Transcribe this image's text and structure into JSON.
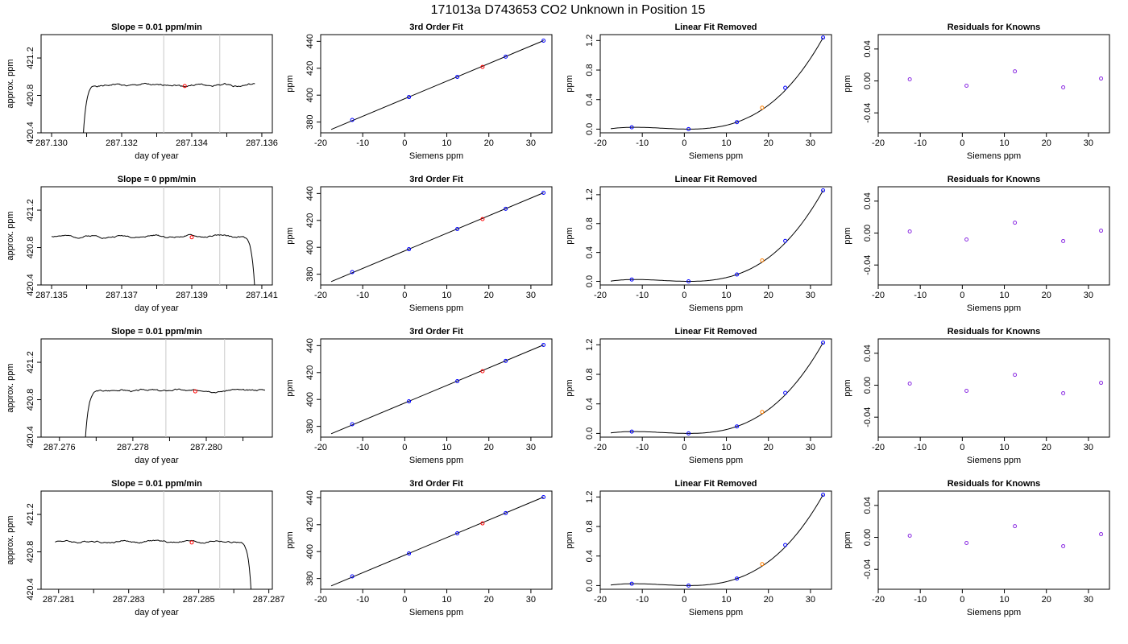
{
  "figure": {
    "title": "171013a      D743653    CO2 Unknown in Position  15"
  },
  "colors": {
    "line": "#000000",
    "vline": "#c8c8c8",
    "unknown_point": "#ff0000",
    "standard_point": "#0000ff",
    "unknown_point_removed": "#ff8000",
    "residual_point": "#8a2be2"
  },
  "chart_data": [
    {
      "type": "line",
      "row": 1,
      "col": 1,
      "title": "Slope =  0.01  ppm/min",
      "xlabel": "day of year",
      "ylabel": "approx. ppm",
      "xlim": [
        287.1297,
        287.1363
      ],
      "ylim": [
        420.4,
        421.45
      ],
      "xticks": [
        287.13,
        287.131,
        287.132,
        287.133,
        287.134,
        287.135,
        287.136
      ],
      "xtick_labels": [
        "287.130",
        "",
        "287.132",
        "",
        "287.134",
        "",
        "287.136"
      ],
      "yticks": [
        420.4,
        420.8,
        421.2
      ],
      "ytick_labels": [
        "420.4",
        "420.8",
        "421.2"
      ],
      "vlines": [
        287.1332,
        287.1348
      ],
      "trace": {
        "x0": 287.1309,
        "x1": 287.1358,
        "ramp": "start",
        "start_value": 420.35,
        "level": 420.91,
        "seed": 1
      },
      "unknown_point": {
        "x": 287.1338,
        "y": 420.9
      }
    },
    {
      "type": "line",
      "row": 1,
      "col": 2,
      "title": "3rd Order Fit",
      "xlabel": "Siemens ppm",
      "ylabel": "ppm",
      "xlim": [
        -20,
        35
      ],
      "ylim": [
        372,
        445
      ],
      "xticks": [
        -20,
        -10,
        0,
        10,
        20,
        30
      ],
      "yticks": [
        380,
        400,
        420,
        440
      ],
      "fit_line": {
        "x": [
          -17.5,
          33
        ],
        "y": [
          374.5,
          440.5
        ]
      },
      "standards": {
        "x": [
          -12.5,
          1,
          12.5,
          24,
          33
        ],
        "y": [
          381.6,
          398.6,
          413.6,
          428.6,
          440.5
        ]
      },
      "unknown": {
        "x": 18.5,
        "y": 421.0
      }
    },
    {
      "type": "line",
      "row": 1,
      "col": 3,
      "title": "Linear Fit Removed",
      "xlabel": "Siemens ppm",
      "ylabel": "ppm",
      "xlim": [
        -20,
        35
      ],
      "ylim": [
        -0.05,
        1.28
      ],
      "xticks": [
        -20,
        -10,
        0,
        10,
        20,
        30
      ],
      "yticks": [
        0,
        0.4,
        0.8,
        1.2
      ],
      "ytick_labels": [
        "0.0",
        "0.4",
        "0.8",
        "1.2"
      ],
      "curve_x": [
        -17.5,
        33
      ],
      "standards": {
        "x": [
          -12.5,
          1,
          12.5,
          24,
          33
        ],
        "y": [
          0.025,
          0,
          0.095,
          0.56,
          1.24
        ]
      },
      "unknown": {
        "x": 18.5,
        "y": 0.29
      }
    },
    {
      "type": "scatter",
      "row": 1,
      "col": 4,
      "title": "Residuals for Knowns",
      "xlabel": "Siemens ppm",
      "ylabel": "ppm",
      "xlim": [
        -20,
        35
      ],
      "ylim": [
        -0.065,
        0.058
      ],
      "xticks": [
        -20,
        -10,
        0,
        10,
        20,
        30
      ],
      "yticks": [
        -0.04,
        0,
        0.04
      ],
      "ytick_labels": [
        "-0.04",
        "0.00",
        "0.04"
      ],
      "points": {
        "x": [
          -12.5,
          1,
          12.5,
          24,
          33
        ],
        "y": [
          0.002,
          -0.006,
          0.012,
          -0.008,
          0.003
        ]
      }
    },
    {
      "type": "line",
      "row": 2,
      "col": 1,
      "title": "Slope =  0  ppm/min",
      "xlabel": "day of year",
      "ylabel": "approx. ppm",
      "xlim": [
        287.1347,
        287.1413
      ],
      "ylim": [
        420.4,
        421.45
      ],
      "xticks": [
        287.135,
        287.136,
        287.137,
        287.138,
        287.139,
        287.14,
        287.141
      ],
      "xtick_labels": [
        "287.135",
        "",
        "287.137",
        "",
        "287.139",
        "",
        "287.141"
      ],
      "yticks": [
        420.4,
        420.8,
        421.2
      ],
      "ytick_labels": [
        "420.4",
        "420.8",
        "421.2"
      ],
      "vlines": [
        287.1382,
        287.1398
      ],
      "trace": {
        "x0": 287.135,
        "x1": 287.1408,
        "ramp": "end",
        "start_value": 420.35,
        "level": 420.92,
        "seed": 2
      },
      "unknown_point": {
        "x": 287.139,
        "y": 420.91
      }
    },
    {
      "type": "line",
      "row": 2,
      "col": 2,
      "title": "3rd Order Fit",
      "xlabel": "Siemens ppm",
      "ylabel": "ppm",
      "xlim": [
        -20,
        35
      ],
      "ylim": [
        372,
        445
      ],
      "xticks": [
        -20,
        -10,
        0,
        10,
        20,
        30
      ],
      "yticks": [
        380,
        400,
        420,
        440
      ],
      "fit_line": {
        "x": [
          -17.5,
          33
        ],
        "y": [
          374.5,
          440.5
        ]
      },
      "standards": {
        "x": [
          -12.5,
          1,
          12.5,
          24,
          33
        ],
        "y": [
          381.6,
          398.6,
          413.6,
          428.6,
          440.5
        ]
      },
      "unknown": {
        "x": 18.5,
        "y": 421.0
      }
    },
    {
      "type": "line",
      "row": 2,
      "col": 3,
      "title": "Linear Fit Removed",
      "xlabel": "Siemens ppm",
      "ylabel": "ppm",
      "xlim": [
        -20,
        35
      ],
      "ylim": [
        -0.05,
        1.31
      ],
      "xticks": [
        -20,
        -10,
        0,
        10,
        20,
        30
      ],
      "yticks": [
        0,
        0.4,
        0.8,
        1.2
      ],
      "ytick_labels": [
        "0.0",
        "0.4",
        "0.8",
        "1.2"
      ],
      "curve_x": [
        -17.5,
        33
      ],
      "standards": {
        "x": [
          -12.5,
          1,
          12.5,
          24,
          33
        ],
        "y": [
          0.025,
          0,
          0.095,
          0.56,
          1.26
        ]
      },
      "unknown": {
        "x": 18.5,
        "y": 0.29
      }
    },
    {
      "type": "scatter",
      "row": 2,
      "col": 4,
      "title": "Residuals for Knowns",
      "xlabel": "Siemens ppm",
      "ylabel": "ppm",
      "xlim": [
        -20,
        35
      ],
      "ylim": [
        -0.065,
        0.058
      ],
      "xticks": [
        -20,
        -10,
        0,
        10,
        20,
        30
      ],
      "yticks": [
        -0.04,
        0,
        0.04
      ],
      "ytick_labels": [
        "-0.04",
        "0.00",
        "0.04"
      ],
      "points": {
        "x": [
          -12.5,
          1,
          12.5,
          24,
          33
        ],
        "y": [
          0.002,
          -0.008,
          0.013,
          -0.01,
          0.003
        ]
      }
    },
    {
      "type": "line",
      "row": 3,
      "col": 1,
      "title": "Slope =  0.01  ppm/min",
      "xlabel": "day of year",
      "ylabel": "approx. ppm",
      "xlim": [
        287.2755,
        287.2818
      ],
      "ylim": [
        420.4,
        421.45
      ],
      "xticks": [
        287.276,
        287.277,
        287.278,
        287.279,
        287.28,
        287.281
      ],
      "xtick_labels": [
        "287.276",
        "",
        "287.278",
        "",
        "287.280",
        ""
      ],
      "yticks": [
        420.4,
        420.8,
        421.2
      ],
      "ytick_labels": [
        "420.4",
        "420.8",
        "421.2"
      ],
      "vlines": [
        287.2789,
        287.2805
      ],
      "trace": {
        "x0": 287.2767,
        "x1": 287.2816,
        "ramp": "start",
        "start_value": 420.35,
        "level": 420.9,
        "seed": 3
      },
      "unknown_point": {
        "x": 287.2797,
        "y": 420.89
      }
    },
    {
      "type": "line",
      "row": 3,
      "col": 2,
      "title": "3rd Order Fit",
      "xlabel": "Siemens ppm",
      "ylabel": "ppm",
      "xlim": [
        -20,
        35
      ],
      "ylim": [
        372,
        445
      ],
      "xticks": [
        -20,
        -10,
        0,
        10,
        20,
        30
      ],
      "yticks": [
        380,
        400,
        420,
        440
      ],
      "fit_line": {
        "x": [
          -17.5,
          33
        ],
        "y": [
          374.5,
          440.5
        ]
      },
      "standards": {
        "x": [
          -12.5,
          1,
          12.5,
          24,
          33
        ],
        "y": [
          381.6,
          398.6,
          413.6,
          428.6,
          440.5
        ]
      },
      "unknown": {
        "x": 18.5,
        "y": 421.0
      }
    },
    {
      "type": "line",
      "row": 3,
      "col": 3,
      "title": "Linear Fit Removed",
      "xlabel": "Siemens ppm",
      "ylabel": "ppm",
      "xlim": [
        -20,
        35
      ],
      "ylim": [
        -0.05,
        1.28
      ],
      "xticks": [
        -20,
        -10,
        0,
        10,
        20,
        30
      ],
      "yticks": [
        0,
        0.4,
        0.8,
        1.2
      ],
      "ytick_labels": [
        "0.0",
        "0.4",
        "0.8",
        "1.2"
      ],
      "curve_x": [
        -17.5,
        33
      ],
      "standards": {
        "x": [
          -12.5,
          1,
          12.5,
          24,
          33
        ],
        "y": [
          0.025,
          0,
          0.095,
          0.55,
          1.23
        ]
      },
      "unknown": {
        "x": 18.5,
        "y": 0.29
      }
    },
    {
      "type": "scatter",
      "row": 3,
      "col": 4,
      "title": "Residuals for Knowns",
      "xlabel": "Siemens ppm",
      "ylabel": "ppm",
      "xlim": [
        -20,
        35
      ],
      "ylim": [
        -0.065,
        0.058
      ],
      "xticks": [
        -20,
        -10,
        0,
        10,
        20,
        30
      ],
      "yticks": [
        -0.04,
        0,
        0.04
      ],
      "ytick_labels": [
        "-0.04",
        "0.00",
        "0.04"
      ],
      "points": {
        "x": [
          -12.5,
          1,
          12.5,
          24,
          33
        ],
        "y": [
          0.002,
          -0.007,
          0.013,
          -0.01,
          0.003
        ]
      }
    },
    {
      "type": "line",
      "row": 4,
      "col": 1,
      "title": "Slope =  0.01  ppm/min",
      "xlabel": "day of year",
      "ylabel": "approx. ppm",
      "xlim": [
        287.2805,
        287.2871
      ],
      "ylim": [
        420.4,
        421.45
      ],
      "xticks": [
        287.281,
        287.282,
        287.283,
        287.284,
        287.285,
        287.286,
        287.287
      ],
      "xtick_labels": [
        "287.281",
        "",
        "287.283",
        "",
        "287.285",
        "",
        "287.287"
      ],
      "yticks": [
        420.4,
        420.8,
        421.2
      ],
      "ytick_labels": [
        "420.4",
        "420.8",
        "421.2"
      ],
      "vlines": [
        287.284,
        287.2856
      ],
      "trace": {
        "x0": 287.2809,
        "x1": 287.2865,
        "ramp": "end",
        "start_value": 420.35,
        "level": 420.91,
        "seed": 4
      },
      "unknown_point": {
        "x": 287.2848,
        "y": 420.9
      }
    },
    {
      "type": "line",
      "row": 4,
      "col": 2,
      "title": "3rd Order Fit",
      "xlabel": "Siemens ppm",
      "ylabel": "ppm",
      "xlim": [
        -20,
        35
      ],
      "ylim": [
        372,
        445
      ],
      "xticks": [
        -20,
        -10,
        0,
        10,
        20,
        30
      ],
      "yticks": [
        380,
        400,
        420,
        440
      ],
      "fit_line": {
        "x": [
          -17.5,
          33
        ],
        "y": [
          374.5,
          440.5
        ]
      },
      "standards": {
        "x": [
          -12.5,
          1,
          12.5,
          24,
          33
        ],
        "y": [
          381.6,
          398.6,
          413.6,
          428.6,
          440.5
        ]
      },
      "unknown": {
        "x": 18.5,
        "y": 421.0
      }
    },
    {
      "type": "line",
      "row": 4,
      "col": 3,
      "title": "Linear Fit Removed",
      "xlabel": "Siemens ppm",
      "ylabel": "ppm",
      "xlim": [
        -20,
        35
      ],
      "ylim": [
        -0.05,
        1.28
      ],
      "xticks": [
        -20,
        -10,
        0,
        10,
        20,
        30
      ],
      "yticks": [
        0,
        0.4,
        0.8,
        1.2
      ],
      "ytick_labels": [
        "0.0",
        "0.4",
        "0.8",
        "1.2"
      ],
      "curve_x": [
        -17.5,
        33
      ],
      "standards": {
        "x": [
          -12.5,
          1,
          12.5,
          24,
          33
        ],
        "y": [
          0.025,
          0,
          0.095,
          0.55,
          1.23
        ]
      },
      "unknown": {
        "x": 18.5,
        "y": 0.29
      }
    },
    {
      "type": "scatter",
      "row": 4,
      "col": 4,
      "title": "Residuals for Knowns",
      "xlabel": "Siemens ppm",
      "ylabel": "ppm",
      "xlim": [
        -20,
        35
      ],
      "ylim": [
        -0.065,
        0.058
      ],
      "xticks": [
        -20,
        -10,
        0,
        10,
        20,
        30
      ],
      "yticks": [
        -0.04,
        0,
        0.04
      ],
      "ytick_labels": [
        "-0.04",
        "0.00",
        "0.04"
      ],
      "points": {
        "x": [
          -12.5,
          1,
          12.5,
          24,
          33
        ],
        "y": [
          0.002,
          -0.007,
          0.014,
          -0.011,
          0.004
        ]
      }
    }
  ]
}
